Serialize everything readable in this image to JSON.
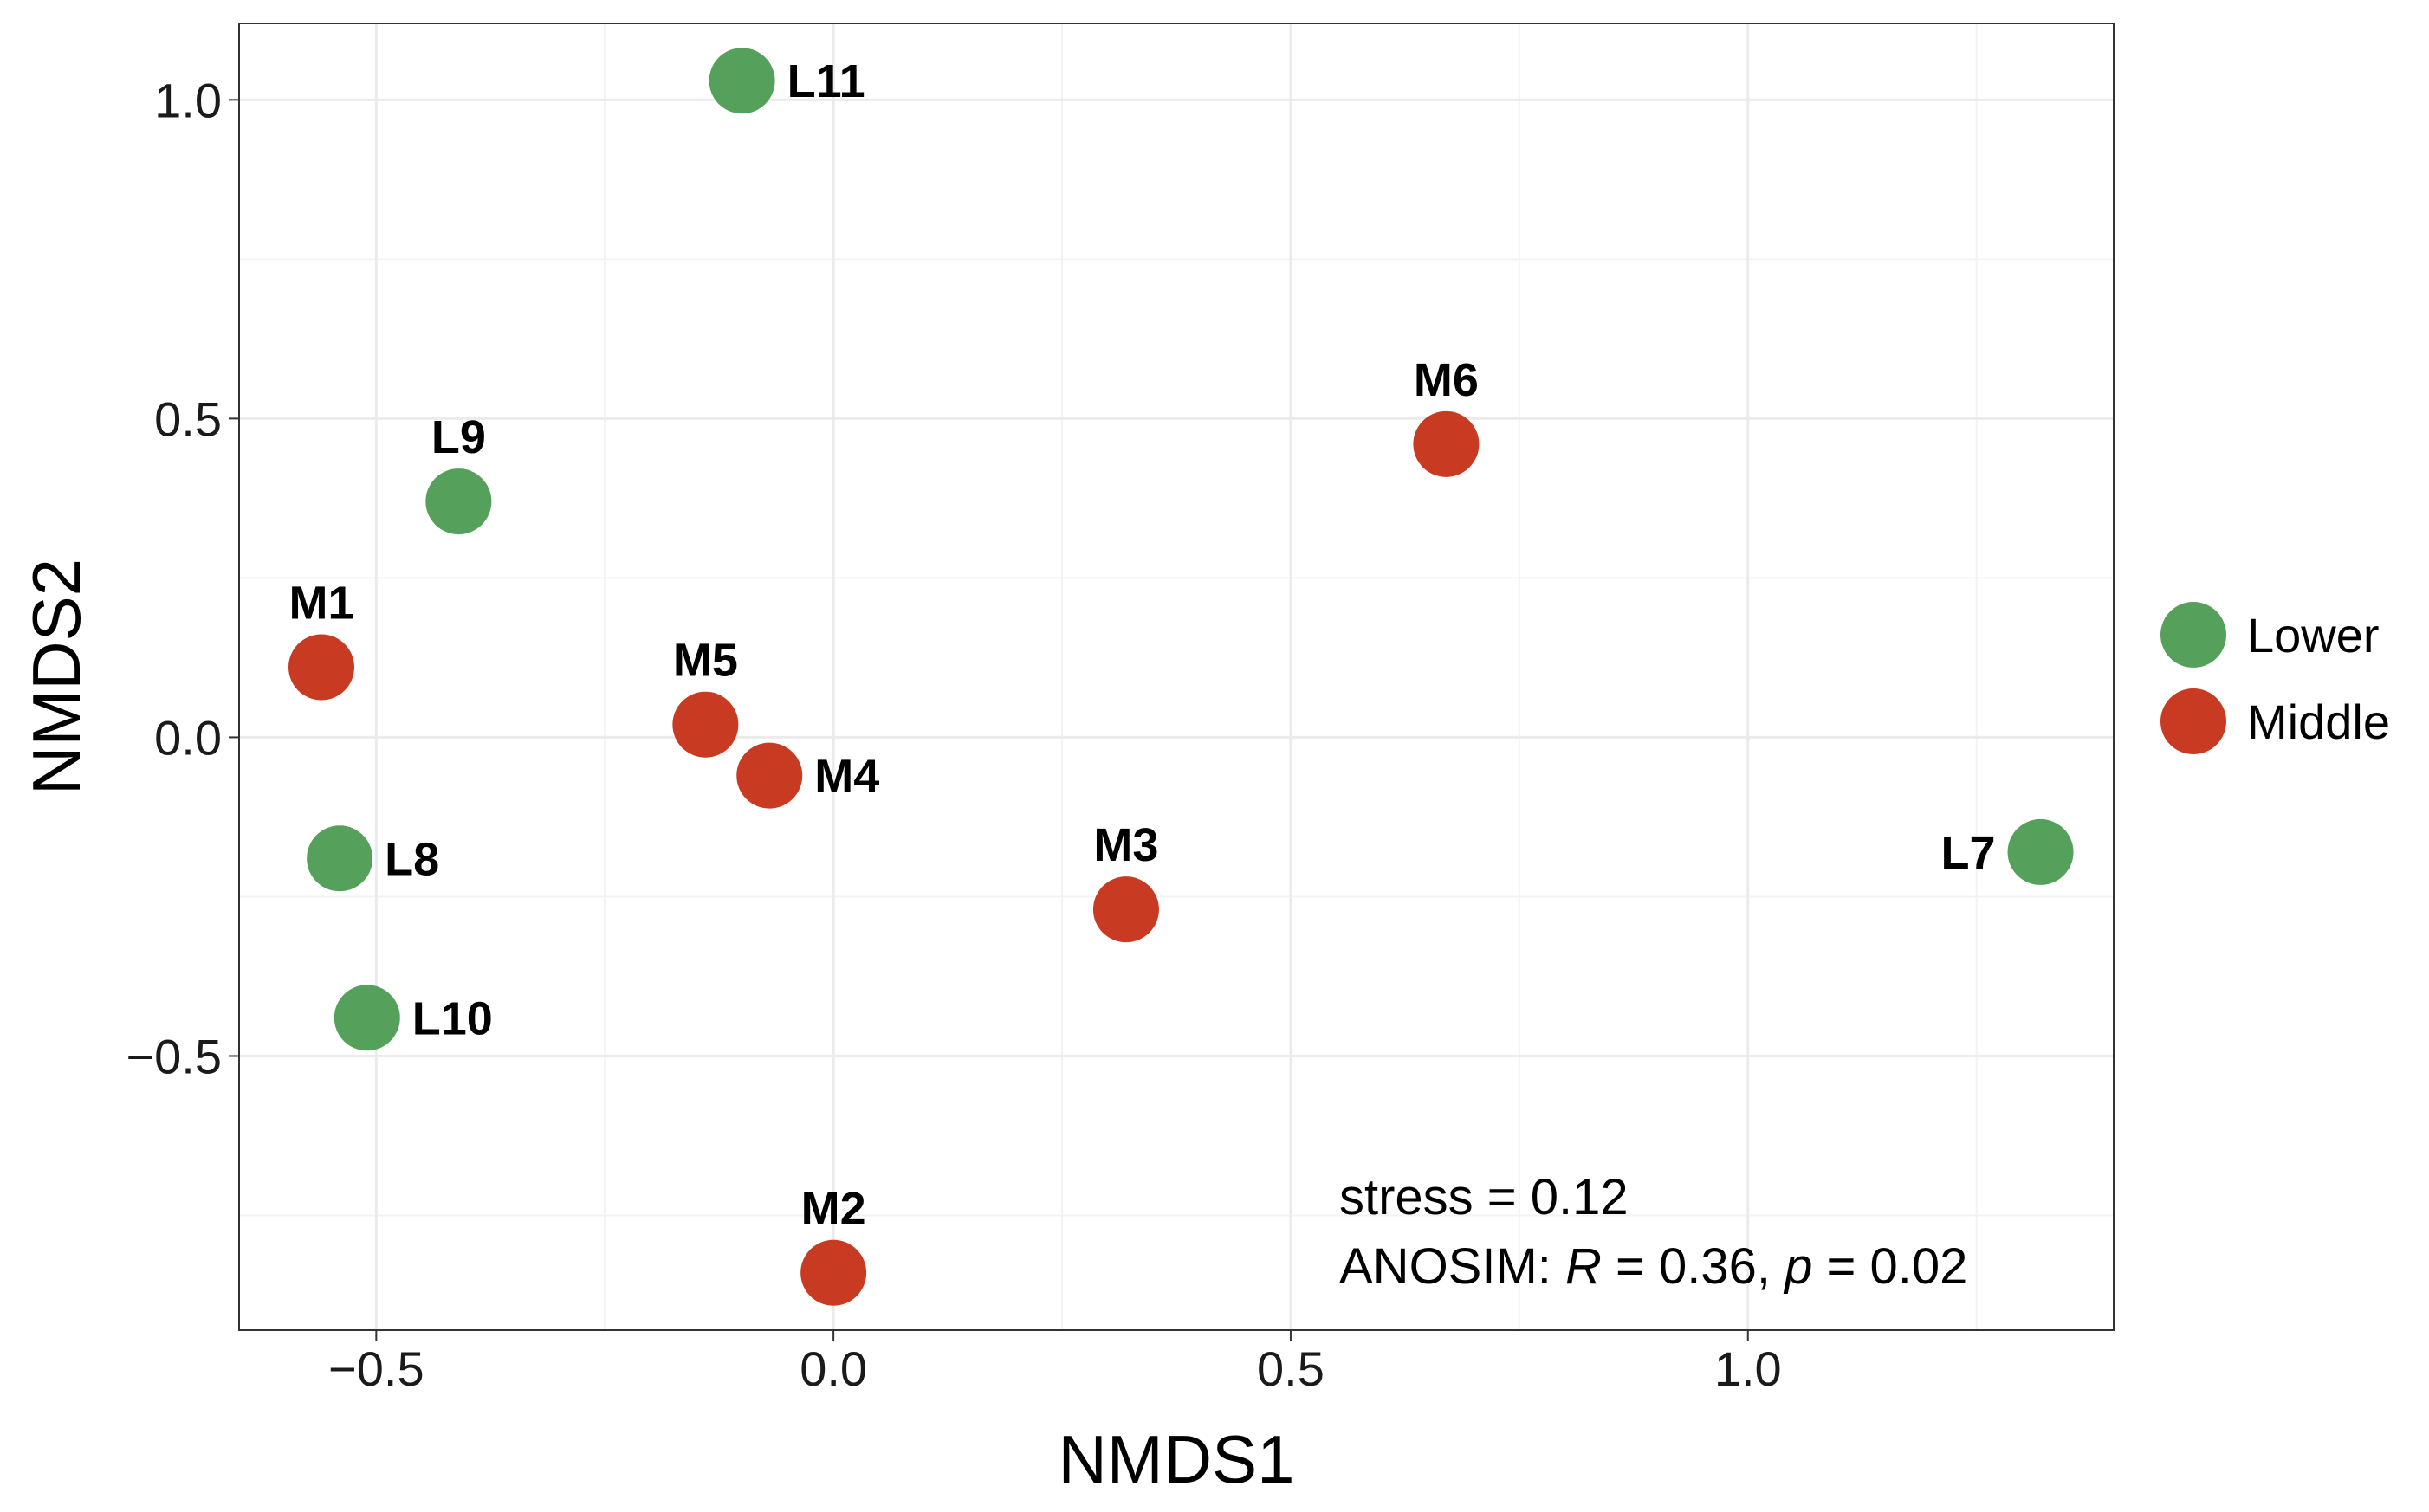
{
  "chart_data": {
    "type": "scatter",
    "title": "",
    "xlabel": "NMDS1",
    "ylabel": "NMDS2",
    "xlim": [
      -0.65,
      1.4
    ],
    "ylim": [
      -0.93,
      1.12
    ],
    "x_ticks": [
      -0.5,
      0.0,
      0.5,
      1.0
    ],
    "x_tick_labels": [
      "−0.5",
      "0.0",
      "0.5",
      "1.0"
    ],
    "y_ticks": [
      -0.5,
      0.0,
      0.5,
      1.0
    ],
    "y_tick_labels": [
      "−0.5",
      "0.0",
      "0.5",
      "1.0"
    ],
    "grid": true,
    "legend_position": "right",
    "series": [
      {
        "name": "Lower",
        "color": "#55a05a",
        "points": [
          {
            "label": "L11",
            "x": -0.1,
            "y": 1.03,
            "label_pos": "right"
          },
          {
            "label": "L9",
            "x": -0.41,
            "y": 0.37,
            "label_pos": "above"
          },
          {
            "label": "L8",
            "x": -0.54,
            "y": -0.19,
            "label_pos": "right"
          },
          {
            "label": "L10",
            "x": -0.51,
            "y": -0.44,
            "label_pos": "right"
          },
          {
            "label": "L7",
            "x": 1.32,
            "y": -0.18,
            "label_pos": "left"
          }
        ]
      },
      {
        "name": "Middle",
        "color": "#c83a22",
        "points": [
          {
            "label": "M6",
            "x": 0.67,
            "y": 0.46,
            "label_pos": "above"
          },
          {
            "label": "M1",
            "x": -0.56,
            "y": 0.11,
            "label_pos": "above"
          },
          {
            "label": "M5",
            "x": -0.14,
            "y": 0.02,
            "label_pos": "above"
          },
          {
            "label": "M4",
            "x": -0.07,
            "y": -0.06,
            "label_pos": "right"
          },
          {
            "label": "M3",
            "x": 0.32,
            "y": -0.27,
            "label_pos": "above"
          },
          {
            "label": "M2",
            "x": 0.0,
            "y": -0.84,
            "label_pos": "above"
          }
        ]
      }
    ],
    "annotations": {
      "stress": "stress = 0.12",
      "anosim_prefix": "ANOSIM: ",
      "anosim_R": "R",
      "anosim_mid": " = 0.36, ",
      "anosim_p": "p",
      "anosim_suffix": " = 0.02"
    }
  }
}
